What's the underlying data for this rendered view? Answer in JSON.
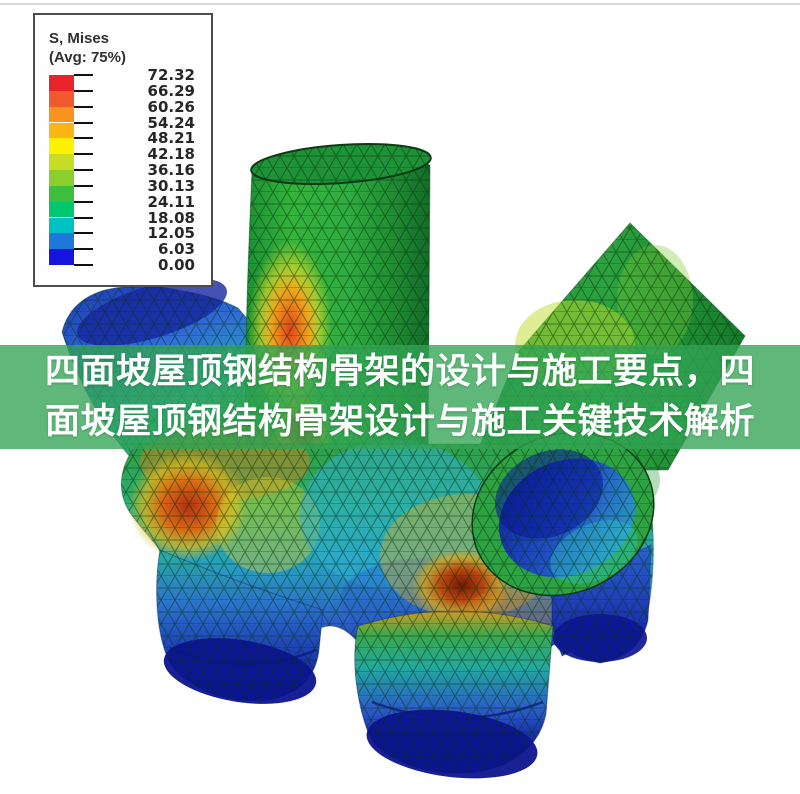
{
  "banner": {
    "line1": "四面坡屋顶钢结构骨架的设计与施工要点，四",
    "line2": "面坡屋顶钢结构骨架设计与施工关键技术解析",
    "overlay_color_rgba": "rgba(50,164,85,0.78)"
  },
  "legend": {
    "title_line1": "S, Mises",
    "title_line2": "(Avg: 75%)",
    "ticks": [
      "72.32",
      "66.29",
      "60.26",
      "54.24",
      "48.21",
      "42.18",
      "36.16",
      "30.13",
      "24.11",
      "18.08",
      "12.05",
      "6.03",
      "0.00"
    ],
    "band_colors": [
      "#e8232a",
      "#f0592b",
      "#f7941e",
      "#fcb515",
      "#fff200",
      "#c6dd23",
      "#8ccf2c",
      "#3cbf3c",
      "#00c86e",
      "#00c2c2",
      "#1e78d9",
      "#1414dc"
    ]
  },
  "chart_data": {
    "type": "heatmap",
    "title": "S, Mises (Avg: 75%)",
    "field": "S, Mises",
    "averaging": "Avg: 75%",
    "legend_position": "top-left",
    "colorbar": {
      "min": 0.0,
      "max": 72.32,
      "ticks": [
        72.32,
        66.29,
        60.26,
        54.24,
        48.21,
        42.18,
        36.16,
        30.13,
        24.11,
        18.08,
        12.05,
        6.03,
        0.0
      ],
      "colors_top_to_bottom": [
        "#e8232a",
        "#f0592b",
        "#f7941e",
        "#fcb515",
        "#fff200",
        "#c6dd23",
        "#8ccf2c",
        "#3cbf3c",
        "#00c86e",
        "#00c2c2",
        "#1e78d9",
        "#1414dc"
      ]
    }
  }
}
